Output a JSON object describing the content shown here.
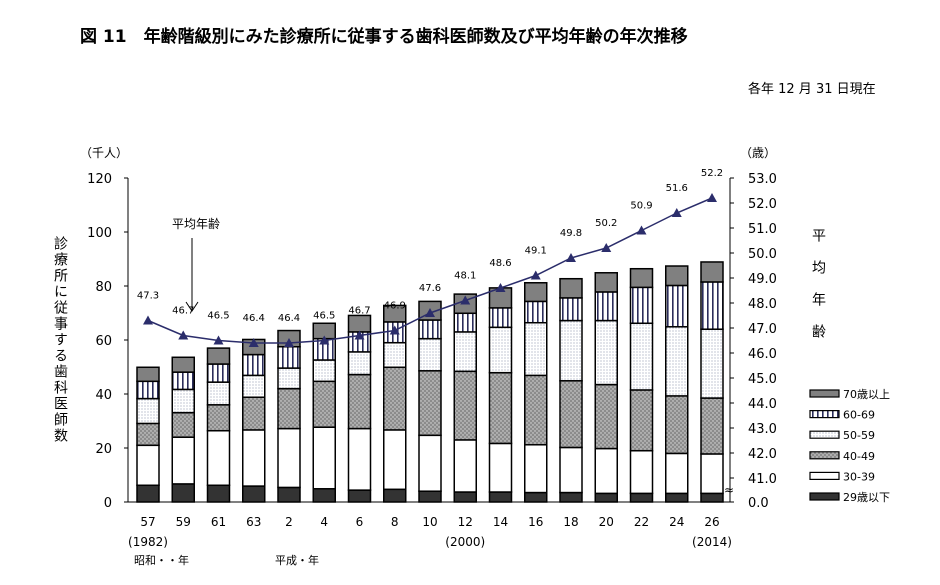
{
  "title": "図 11　年齢階級別にみた診療所に従事する歯科医師数及び平均年齢の年次推移",
  "as_of": "各年 12 月 31 日現在",
  "chart_data": {
    "type": "bar",
    "stacked": true,
    "categories": [
      "57",
      "59",
      "61",
      "63",
      "2",
      "4",
      "6",
      "8",
      "10",
      "12",
      "14",
      "16",
      "18",
      "20",
      "22",
      "24",
      "26"
    ],
    "category_year_notes": [
      {
        "category": "57",
        "text": "(1982)"
      },
      {
        "category": "12",
        "text": "(2000)"
      },
      {
        "category": "26",
        "text": "(2014)"
      }
    ],
    "era_labels": [
      {
        "category": "57",
        "text": "昭和・・年"
      },
      {
        "category": "2",
        "text": "平成・年"
      }
    ],
    "y_unit": "（千人）",
    "ylabel": "診療所に従事する歯科医師数",
    "ylim": [
      0,
      120
    ],
    "yticks": [
      0,
      20,
      40,
      60,
      80,
      100,
      120
    ],
    "y2_unit": "（歳）",
    "y2label": "平均年齢",
    "y2lim": [
      41.0,
      53.0
    ],
    "y2_axis_break": true,
    "y2ticks": [
      "0.0",
      "41.0",
      "42.0",
      "43.0",
      "44.0",
      "45.0",
      "46.0",
      "47.0",
      "48.0",
      "49.0",
      "50.0",
      "51.0",
      "52.0",
      "53.0"
    ],
    "series": [
      {
        "name": "29歳以下",
        "color": "#333333",
        "pattern": "solid",
        "values": [
          6.2,
          6.7,
          6.2,
          5.9,
          5.4,
          4.9,
          4.4,
          4.7,
          4.0,
          3.7,
          3.7,
          3.5,
          3.5,
          3.2,
          3.2,
          3.2,
          3.2
        ]
      },
      {
        "name": "30-39",
        "color": "#ffffff",
        "pattern": "solid",
        "values": [
          14.8,
          17.3,
          20.2,
          20.8,
          21.8,
          22.8,
          22.8,
          22.0,
          20.7,
          19.3,
          18.0,
          17.7,
          16.7,
          16.6,
          15.8,
          14.8,
          14.6
        ]
      },
      {
        "name": "40-49",
        "color": "#8c8c8c",
        "pattern": "dots-dark",
        "values": [
          8.1,
          9.1,
          9.6,
          12.1,
          14.8,
          17.0,
          20.0,
          23.2,
          23.9,
          25.4,
          26.2,
          25.7,
          24.7,
          23.7,
          22.5,
          21.3,
          20.7
        ]
      },
      {
        "name": "50-59",
        "color": "#e4e8f0",
        "pattern": "dots-light",
        "values": [
          9.2,
          8.6,
          8.4,
          8.1,
          7.6,
          7.9,
          8.4,
          9.1,
          11.9,
          14.6,
          16.8,
          19.5,
          22.3,
          23.7,
          24.7,
          25.6,
          25.5
        ]
      },
      {
        "name": "60-69",
        "color": "#ffffff",
        "pattern": "vertical-stripes",
        "values": [
          6.4,
          6.4,
          6.7,
          7.7,
          7.9,
          7.9,
          7.4,
          7.7,
          6.9,
          6.9,
          7.2,
          7.9,
          8.4,
          10.6,
          13.3,
          15.3,
          17.5
        ]
      },
      {
        "name": "70歳以上",
        "color": "#808080",
        "pattern": "solid",
        "values": [
          5.2,
          5.5,
          5.9,
          5.6,
          6.0,
          5.7,
          6.1,
          6.1,
          6.9,
          7.1,
          7.4,
          6.9,
          7.1,
          7.1,
          6.9,
          7.2,
          7.4
        ]
      }
    ],
    "line": {
      "name": "平均年齢",
      "color": "#2b2d6b",
      "marker": "triangle",
      "axis": "right",
      "values": [
        47.3,
        46.7,
        46.5,
        46.4,
        46.4,
        46.5,
        46.7,
        46.9,
        47.6,
        48.1,
        48.6,
        49.1,
        49.8,
        50.2,
        50.9,
        51.6,
        52.2
      ],
      "labels": [
        "47.3",
        "46.7",
        "46.5",
        "46.4",
        "46.4",
        "46.5",
        "46.7",
        "46.9",
        "47.6",
        "48.1",
        "48.6",
        "49.1",
        "49.8",
        "50.2",
        "50.9",
        "51.6",
        "52.2"
      ]
    },
    "annotation": "平均年齢",
    "legend_order": [
      "70歳以上",
      "60-69",
      "50-59",
      "40-49",
      "30-39",
      "29歳以下"
    ],
    "legend_position": "right",
    "grid": false
  }
}
